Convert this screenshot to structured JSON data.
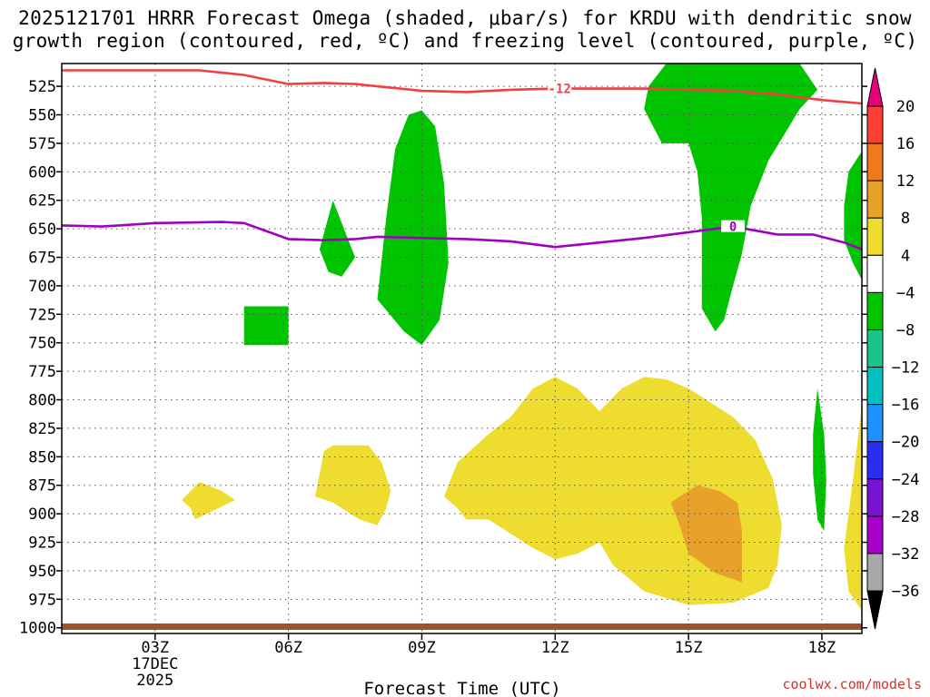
{
  "chart_data": {
    "type": "time-height",
    "title": "2025121701 HRRR Forecast Omega (shaded, μbar/s) for KRDU with dendritic snow",
    "subtitle": "growth region (contoured, red, ºC) and freezing level (contoured, purple, ºC)",
    "xlabel": "Forecast Time (UTC)",
    "x_ticks": [
      "03Z",
      "06Z",
      "09Z",
      "12Z",
      "15Z",
      "18Z"
    ],
    "x_tick_hours": [
      3,
      6,
      9,
      12,
      15,
      18
    ],
    "x_date_label": [
      "17DEC",
      "2025"
    ],
    "x_range_hours": [
      0.9,
      18.9
    ],
    "y_ticks": [
      525,
      550,
      575,
      600,
      625,
      650,
      675,
      700,
      725,
      750,
      775,
      800,
      825,
      850,
      875,
      900,
      925,
      950,
      975,
      1000
    ],
    "y_range_hPa": [
      505,
      1005
    ],
    "colorbar": {
      "levels": [
        20,
        16,
        12,
        8,
        4,
        -4,
        -8,
        -12,
        -16,
        -20,
        -24,
        -28,
        -32,
        -36
      ],
      "colors": [
        "#ff3e33",
        "#f07a1a",
        "#e8a22a",
        "#eedd2f",
        "#ffffff",
        "#00c400",
        "#1ac38c",
        "#00c0c0",
        "#1e90ff",
        "#2a2ef0",
        "#7a12d2",
        "#a800c8",
        "#a8a8a8"
      ],
      "top_arrow_color": "#e8007a",
      "bottom_arrow_color": "#000000"
    },
    "contours": [
      {
        "name": "dendritic snow growth region (-12 ºC)",
        "label": "-12",
        "color": "#f04040",
        "points": [
          [
            0.9,
            511
          ],
          [
            4,
            511
          ],
          [
            5,
            515
          ],
          [
            6,
            523
          ],
          [
            6.8,
            522
          ],
          [
            7.5,
            523
          ],
          [
            9,
            529
          ],
          [
            10,
            530
          ],
          [
            11,
            528
          ],
          [
            12,
            527
          ],
          [
            14,
            527
          ],
          [
            16,
            529
          ],
          [
            17,
            532
          ],
          [
            18,
            537
          ],
          [
            18.9,
            540
          ]
        ]
      },
      {
        "name": "freezing level (0 ºC)",
        "label": "0",
        "color": "#a000c0",
        "points": [
          [
            0.9,
            647
          ],
          [
            1.8,
            648
          ],
          [
            3,
            645
          ],
          [
            4.5,
            644
          ],
          [
            5,
            645
          ],
          [
            6,
            659
          ],
          [
            6.8,
            660
          ],
          [
            7.5,
            659
          ],
          [
            8,
            657
          ],
          [
            9,
            658
          ],
          [
            10,
            659
          ],
          [
            11,
            661
          ],
          [
            12,
            666
          ],
          [
            14,
            658
          ],
          [
            15,
            653
          ],
          [
            16,
            648
          ],
          [
            17,
            655
          ],
          [
            17.8,
            655
          ],
          [
            18.5,
            662
          ],
          [
            18.9,
            668
          ]
        ]
      }
    ],
    "shaded_regions": [
      {
        "name": "omega -4 to -8 above 725 hPa at 08-09Z",
        "color": "#00c400",
        "points": [
          [
            8,
            712
          ],
          [
            8.2,
            640
          ],
          [
            8.4,
            580
          ],
          [
            8.7,
            550
          ],
          [
            9,
            546
          ],
          [
            9.3,
            560
          ],
          [
            9.5,
            610
          ],
          [
            9.6,
            680
          ],
          [
            9.4,
            730
          ],
          [
            9,
            752
          ],
          [
            8.6,
            740
          ]
        ]
      },
      {
        "name": "omega -4 to -8 near 675 hPa at 07Z",
        "color": "#00c400",
        "points": [
          [
            6.7,
            668
          ],
          [
            7,
            625
          ],
          [
            7.3,
            655
          ],
          [
            7.5,
            675
          ],
          [
            7.2,
            692
          ],
          [
            6.9,
            688
          ]
        ]
      },
      {
        "name": "omega -4 to -8 block near 725-750 hPa at 05Z",
        "color": "#00c400",
        "points": [
          [
            5,
            718
          ],
          [
            6,
            718
          ],
          [
            6,
            752
          ],
          [
            5,
            752
          ]
        ]
      },
      {
        "name": "omega -4 to -8 aloft 14-18Z",
        "color": "#00c400",
        "points": [
          [
            14.5,
            505
          ],
          [
            17.5,
            505
          ],
          [
            17.9,
            528
          ],
          [
            17.5,
            545
          ],
          [
            16.8,
            590
          ],
          [
            16.4,
            630
          ],
          [
            16.2,
            672
          ],
          [
            16,
            700
          ],
          [
            15.8,
            730
          ],
          [
            15.6,
            740
          ],
          [
            15.3,
            720
          ],
          [
            15.3,
            680
          ],
          [
            15.3,
            640
          ],
          [
            15.2,
            600
          ],
          [
            15,
            575
          ],
          [
            14.4,
            575
          ],
          [
            14,
            545
          ],
          [
            14.1,
            525
          ]
        ]
      },
      {
        "name": "omega -4 to -8 near 18Z aloft",
        "color": "#00c400",
        "points": [
          [
            18.5,
            630
          ],
          [
            18.6,
            600
          ],
          [
            18.9,
            582
          ],
          [
            18.9,
            695
          ],
          [
            18.7,
            680
          ],
          [
            18.5,
            660
          ]
        ]
      },
      {
        "name": "omega -4 to -8 near 18Z low levels",
        "color": "#00c400",
        "points": [
          [
            17.9,
            790
          ],
          [
            18.05,
            830
          ],
          [
            18.1,
            870
          ],
          [
            18.05,
            915
          ],
          [
            17.9,
            905
          ],
          [
            17.8,
            865
          ],
          [
            17.8,
            830
          ]
        ]
      },
      {
        "name": "omega 4-8 near 03-04Z",
        "color": "#eedd2f",
        "points": [
          [
            3.6,
            888
          ],
          [
            4,
            872
          ],
          [
            4.5,
            880
          ],
          [
            4.8,
            888
          ],
          [
            3.9,
            905
          ],
          [
            3.8,
            895
          ]
        ]
      },
      {
        "name": "omega 4-8 near 07-08Z",
        "color": "#eedd2f",
        "points": [
          [
            6.6,
            885
          ],
          [
            6.8,
            845
          ],
          [
            7,
            840
          ],
          [
            7.8,
            840
          ],
          [
            8.1,
            855
          ],
          [
            8.3,
            880
          ],
          [
            8.2,
            895
          ],
          [
            8,
            910
          ],
          [
            7.6,
            905
          ],
          [
            7,
            890
          ]
        ]
      },
      {
        "name": "omega 4-8 broad region 10-17Z",
        "color": "#eedd2f",
        "points": [
          [
            9.5,
            885
          ],
          [
            9.8,
            855
          ],
          [
            10.5,
            830
          ],
          [
            11,
            815
          ],
          [
            11.5,
            790
          ],
          [
            12,
            780
          ],
          [
            12.5,
            790
          ],
          [
            13,
            810
          ],
          [
            13.5,
            790
          ],
          [
            14,
            780
          ],
          [
            14.5,
            782
          ],
          [
            15,
            790
          ],
          [
            16,
            815
          ],
          [
            16.5,
            835
          ],
          [
            16.9,
            870
          ],
          [
            17.1,
            910
          ],
          [
            17,
            945
          ],
          [
            16.8,
            965
          ],
          [
            16,
            978
          ],
          [
            15,
            980
          ],
          [
            14,
            968
          ],
          [
            13.3,
            945
          ],
          [
            13,
            925
          ],
          [
            12.5,
            935
          ],
          [
            12,
            940
          ],
          [
            11.5,
            930
          ],
          [
            10.5,
            905
          ],
          [
            10,
            905
          ],
          [
            9.8,
            895
          ]
        ]
      },
      {
        "name": "omega 8-12 near 15-16Z",
        "color": "#e8a22a",
        "points": [
          [
            14.8,
            885
          ],
          [
            15.2,
            875
          ],
          [
            15.7,
            880
          ],
          [
            16.1,
            890
          ],
          [
            16.2,
            915
          ],
          [
            16.2,
            960
          ],
          [
            15.6,
            952
          ],
          [
            15,
            935
          ],
          [
            14.8,
            910
          ],
          [
            14.6,
            890
          ]
        ]
      },
      {
        "name": "omega 4-8 near 19Z",
        "color": "#eedd2f",
        "points": [
          [
            18.9,
            805
          ],
          [
            18.9,
            985
          ],
          [
            18.6,
            968
          ],
          [
            18.5,
            930
          ],
          [
            18.7,
            870
          ]
        ]
      }
    ],
    "terrain": {
      "name": "surface",
      "color": "#a0522d"
    }
  },
  "credit": "coolwx.com/models"
}
